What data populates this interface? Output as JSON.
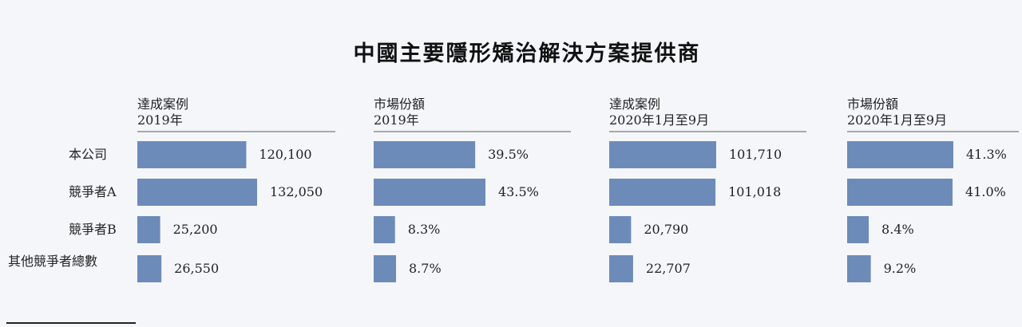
{
  "title": "中國主要隱形矯治解決方案提供商",
  "rows": [
    "本公司",
    "競爭者A",
    "競爭者B",
    "其他競爭者總數"
  ],
  "colors": {
    "bar": "#6d8bb8",
    "background": "#f4f6fa"
  },
  "chart_data": [
    {
      "type": "bar",
      "title_line1": "達成案例",
      "title_line2": "2019年",
      "categories": [
        "本公司",
        "競爭者A",
        "競爭者B",
        "其他競爭者總數"
      ],
      "values": [
        120100,
        132050,
        25200,
        26550
      ],
      "labels": [
        "120,100",
        "132,050",
        "25,200",
        "26,550"
      ]
    },
    {
      "type": "bar",
      "title_line1": "市場份額",
      "title_line2": "2019年",
      "categories": [
        "本公司",
        "競爭者A",
        "競爭者B",
        "其他競爭者總數"
      ],
      "values": [
        39.5,
        43.5,
        8.3,
        8.7
      ],
      "labels": [
        "39.5%",
        "43.5%",
        "8.3%",
        "8.7%"
      ]
    },
    {
      "type": "bar",
      "title_line1": "達成案例",
      "title_line2": "2020年1月至9月",
      "categories": [
        "本公司",
        "競爭者A",
        "競爭者B",
        "其他競爭者總數"
      ],
      "values": [
        101710,
        101018,
        20790,
        22707
      ],
      "labels": [
        "101,710",
        "101,018",
        "20,790",
        "22,707"
      ]
    },
    {
      "type": "bar",
      "title_line1": "市場份額",
      "title_line2": "2020年1月至9月",
      "categories": [
        "本公司",
        "競爭者A",
        "競爭者B",
        "其他競爭者總數"
      ],
      "values": [
        41.3,
        41.0,
        8.4,
        9.2
      ],
      "labels": [
        "41.3%",
        "41.0%",
        "8.4%",
        "9.2%"
      ]
    }
  ]
}
